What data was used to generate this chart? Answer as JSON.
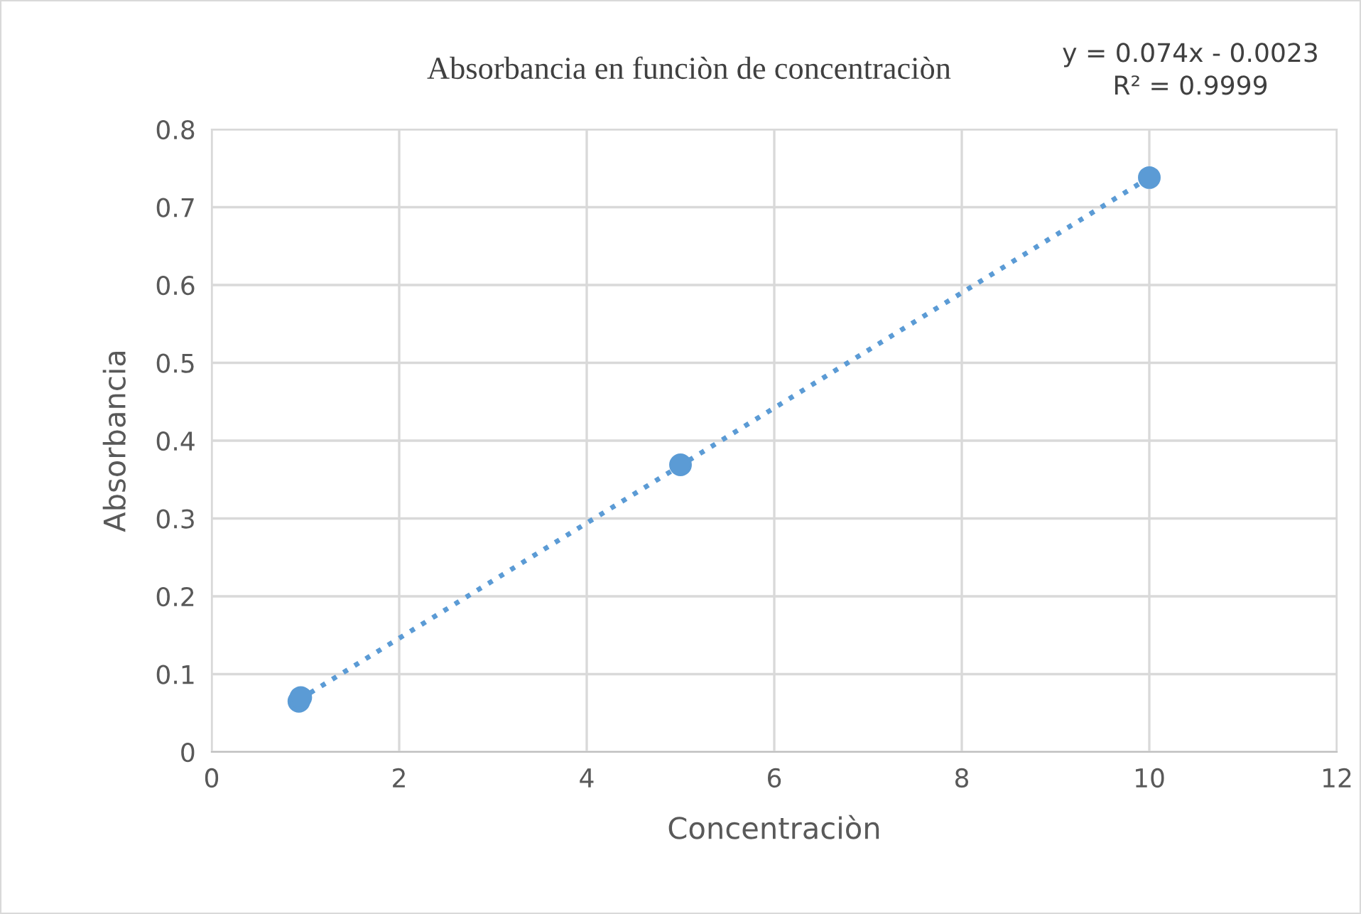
{
  "chart_data": {
    "type": "scatter",
    "title": "Absorbancia en funciòn de concentraciòn",
    "xlabel": "Concentraciòn",
    "ylabel": "Absorbancia",
    "series": [
      {
        "color": "#5b9bd5",
        "x": [
          0.93,
          0.95,
          5,
          10
        ],
        "values": [
          0.065,
          0.07,
          0.369,
          0.738
        ],
        "marker": "circle"
      },
      {
        "type": "line",
        "color": "#5b9bd5",
        "x": [
          0.93,
          10
        ],
        "values": [
          0.067,
          0.738
        ],
        "line_style": "dotted",
        "marker": "none"
      }
    ],
    "annotations": [
      "y = 0.074x - 0.0023\nR² = 0.9999"
    ],
    "xlim": [
      0,
      12
    ],
    "xticks": [
      0,
      2,
      4,
      6,
      8,
      10,
      12
    ],
    "ylim": [
      0,
      0.8
    ],
    "yticks": [
      0,
      0.1,
      0.2,
      0.3,
      0.4,
      0.5,
      0.6,
      0.7,
      0.8
    ],
    "grid": true
  }
}
